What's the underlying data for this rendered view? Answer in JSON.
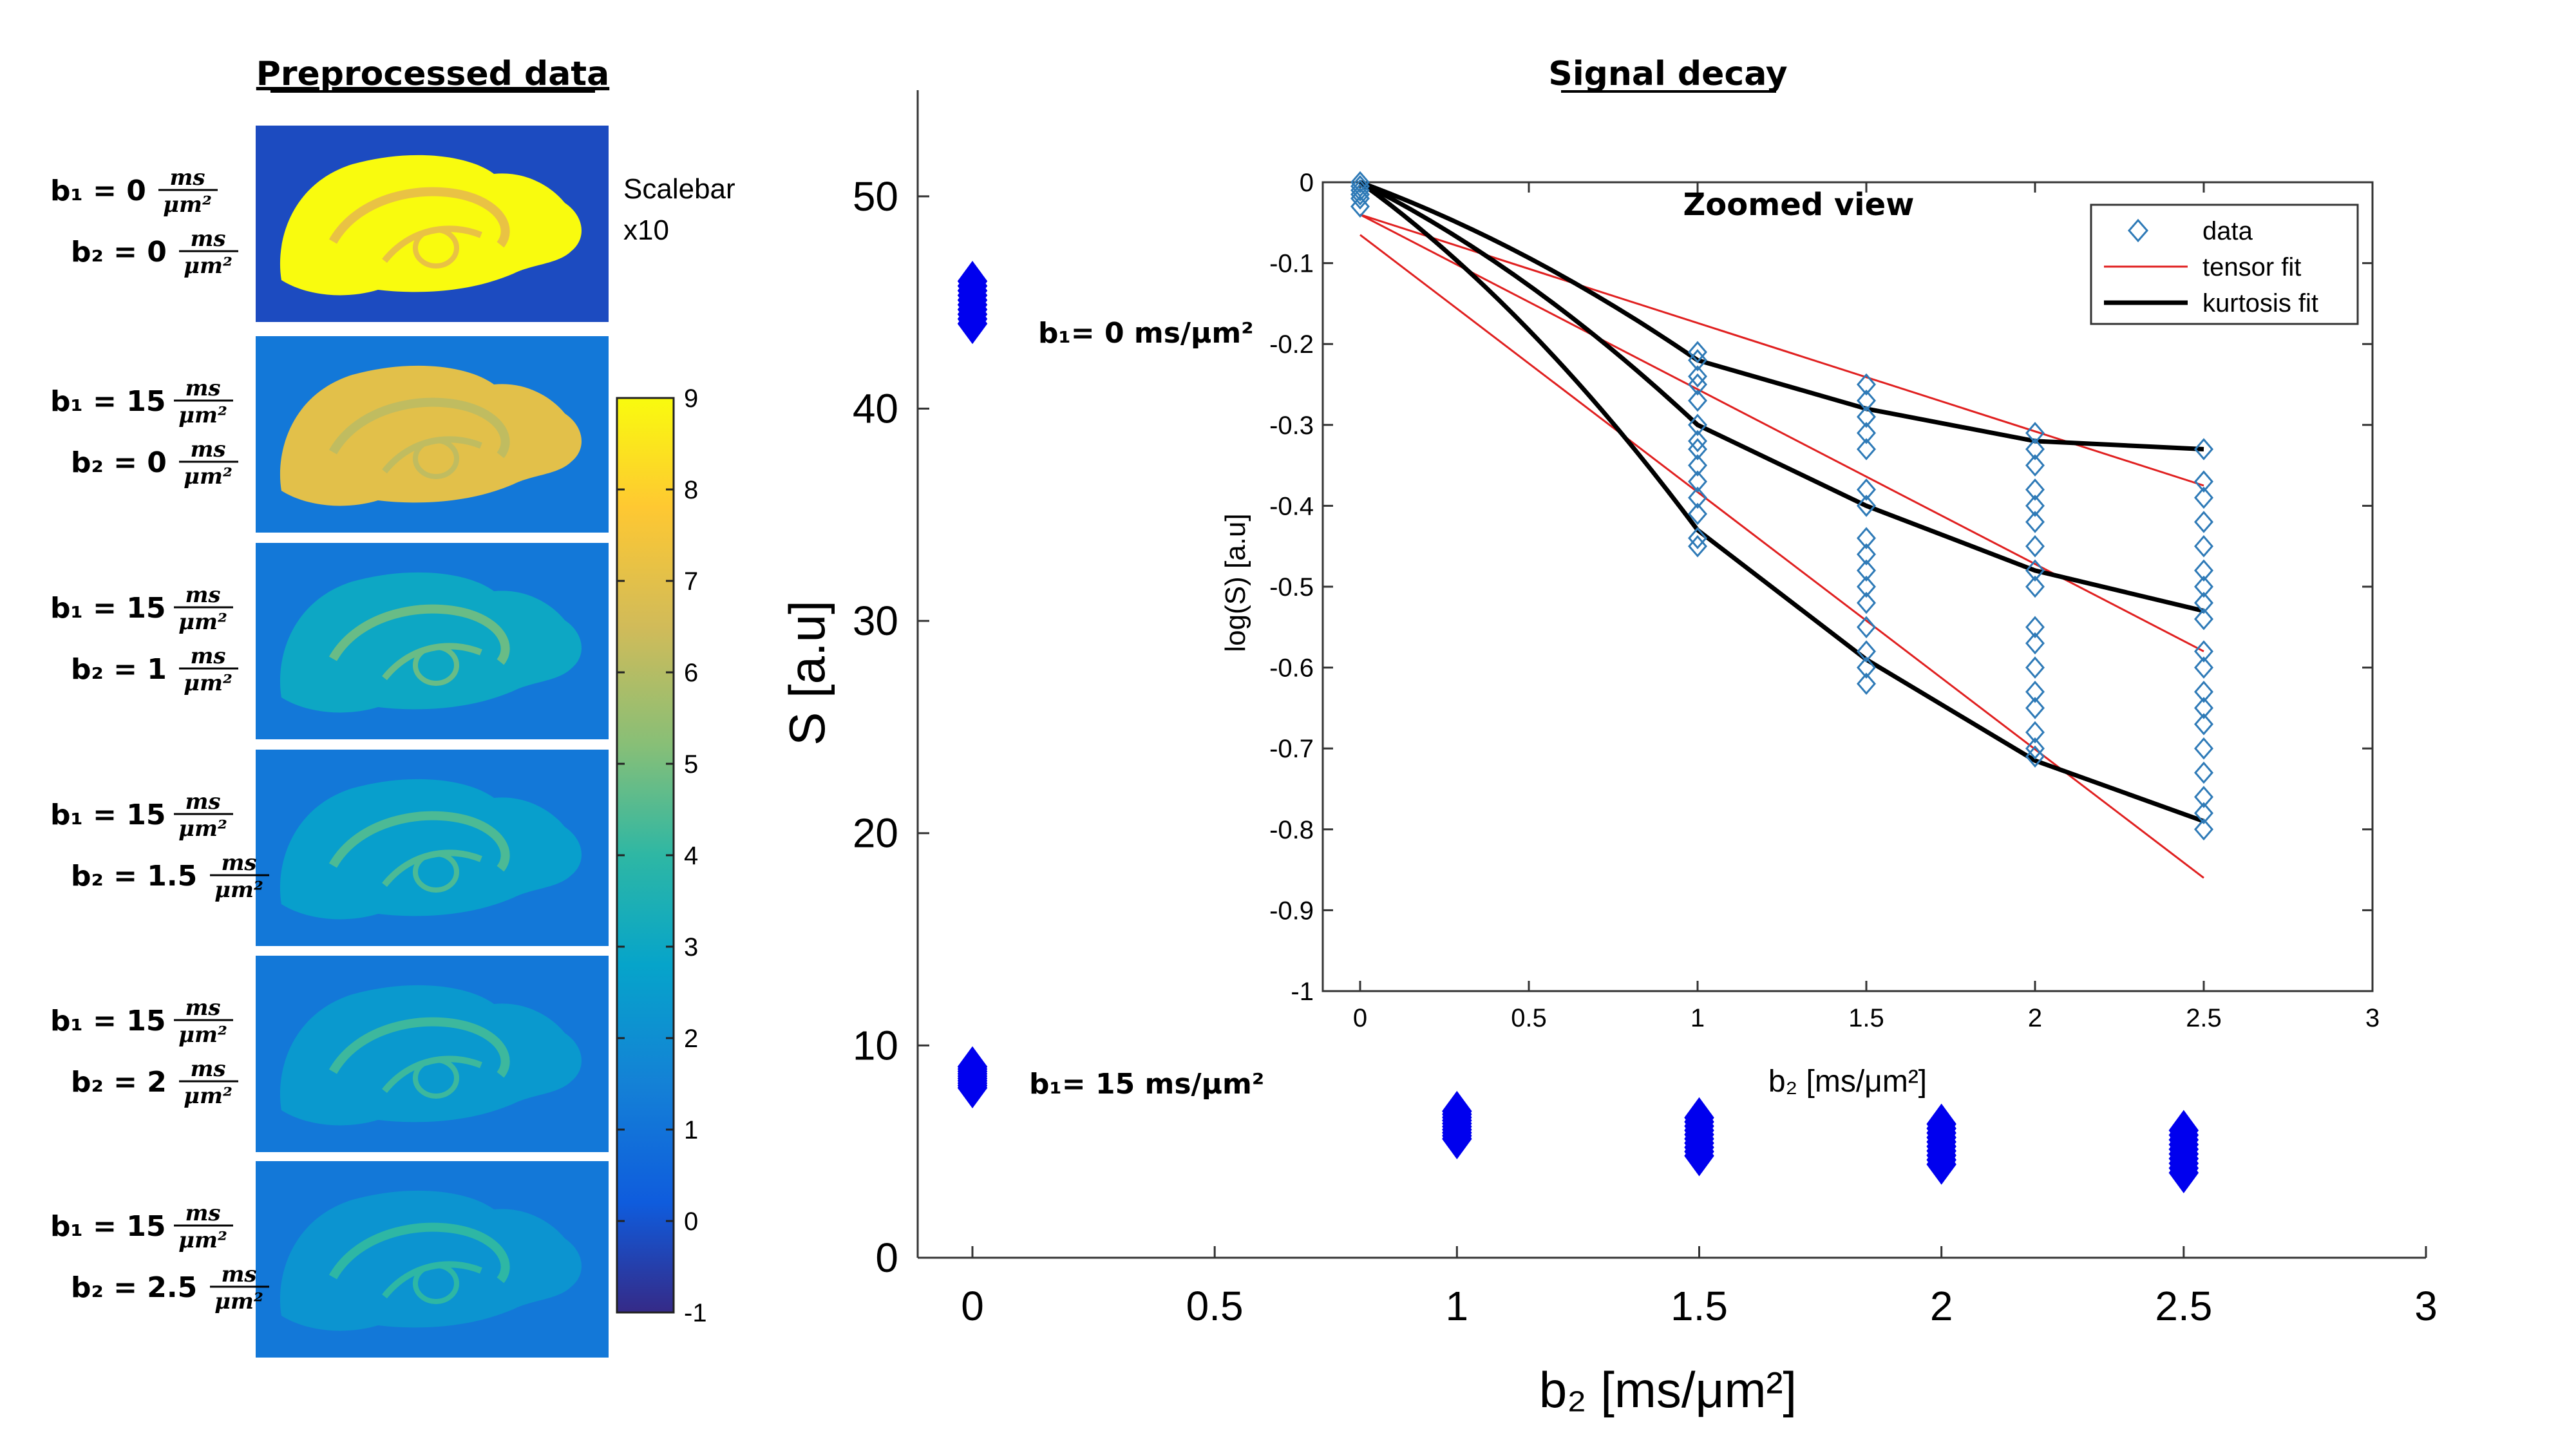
{
  "chart_data": [
    {
      "type": "image-panel",
      "title": "Preprocessed data",
      "scalebar_label_line1": "Scalebar",
      "scalebar_label_line2": "x10",
      "colormap": "parula",
      "colorbar_ticks": [
        "9",
        "8",
        "7",
        "6",
        "5",
        "4",
        "3",
        "2",
        "1",
        "0",
        "-1"
      ],
      "colorbar_range": [
        -1,
        9
      ],
      "unit": "ms",
      "unit_den": "μm²",
      "rows": [
        {
          "b1": "b₁ = 0",
          "b2": "b₂ = 0",
          "brightness": 9
        },
        {
          "b1": "b₁ = 15",
          "b2": "b₂ = 0",
          "brightness": 7
        },
        {
          "b1": "b₁ = 15",
          "b2": "b₂ = 1",
          "brightness": 3
        },
        {
          "b1": "b₁ = 15",
          "b2": "b₂ = 1.5",
          "brightness": 2.6
        },
        {
          "b1": "b₁ = 15",
          "b2": "b₂ = 2",
          "brightness": 2.4
        },
        {
          "b1": "b₁ = 15",
          "b2": "b₂ = 2.5",
          "brightness": 2.2
        }
      ]
    },
    {
      "type": "scatter",
      "title": "Signal decay",
      "xlabel": "b₂ [ms/μm²]",
      "ylabel": "S [a.u]",
      "xlim": [
        0,
        3
      ],
      "ylim": [
        0,
        55
      ],
      "xticks": [
        0,
        0.5,
        1,
        1.5,
        2,
        2.5,
        3
      ],
      "xtick_labels": [
        "0",
        "0.5",
        "1",
        "1.5",
        "2",
        "2.5",
        "3"
      ],
      "yticks": [
        0,
        10,
        20,
        30,
        40,
        50
      ],
      "ytick_labels": [
        "0",
        "10",
        "20",
        "30",
        "40",
        "50"
      ],
      "annotations": [
        {
          "text": "b₁= 0 ms/μm²",
          "x": 0,
          "y": 44.8
        },
        {
          "text": "b₁= 15 ms/μm²",
          "x": 0,
          "y": 8.5
        }
      ],
      "series": [
        {
          "name": "b1=0",
          "x": 0,
          "y_range": [
            44,
            46
          ]
        },
        {
          "name": "b1=15",
          "points": [
            {
              "x": 0,
              "y_range": [
                8,
                9
              ]
            },
            {
              "x": 1,
              "y_range": [
                5.6,
                6.9
              ]
            },
            {
              "x": 1.5,
              "y_range": [
                4.8,
                6.6
              ]
            },
            {
              "x": 2,
              "y_range": [
                4.4,
                6.3
              ]
            },
            {
              "x": 2.5,
              "y_range": [
                4.0,
                6.0
              ]
            }
          ]
        }
      ]
    },
    {
      "type": "scatter+line",
      "title": "Zoomed view",
      "xlabel": "b₂ [ms/μm²]",
      "ylabel": "log(S) [a.u]",
      "xlim": [
        0,
        3
      ],
      "ylim": [
        -1,
        0
      ],
      "xticks": [
        0,
        0.5,
        1,
        1.5,
        2,
        2.5,
        3
      ],
      "xtick_labels": [
        "0",
        "0.5",
        "1",
        "1.5",
        "2",
        "2.5",
        "3"
      ],
      "yticks": [
        0,
        -0.1,
        -0.2,
        -0.3,
        -0.4,
        -0.5,
        -0.6,
        -0.7,
        -0.8,
        -0.9,
        -1
      ],
      "ytick_labels": [
        "0",
        "-0.1",
        "-0.2",
        "-0.3",
        "-0.4",
        "-0.5",
        "-0.6",
        "-0.7",
        "-0.8",
        "-0.9",
        "-1"
      ],
      "legend": [
        "data",
        "tensor fit",
        "kurtosis fit"
      ],
      "legend_position": "top-right",
      "colors": {
        "data": "#2e7ab7",
        "tensor": "#e02020",
        "kurtosis": "#000000",
        "blue_marker": "#0000ee"
      },
      "data_points": [
        {
          "x": 0,
          "y": [
            0,
            -0.005,
            -0.01,
            -0.015,
            -0.02,
            -0.03
          ]
        },
        {
          "x": 1,
          "y": [
            -0.21,
            -0.22,
            -0.24,
            -0.25,
            -0.27,
            -0.3,
            -0.32,
            -0.33,
            -0.35,
            -0.37,
            -0.39,
            -0.41,
            -0.44,
            -0.45
          ]
        },
        {
          "x": 1.5,
          "y": [
            -0.25,
            -0.27,
            -0.29,
            -0.31,
            -0.33,
            -0.38,
            -0.4,
            -0.44,
            -0.46,
            -0.48,
            -0.5,
            -0.52,
            -0.55,
            -0.58,
            -0.6,
            -0.62
          ]
        },
        {
          "x": 2,
          "y": [
            -0.31,
            -0.33,
            -0.35,
            -0.38,
            -0.4,
            -0.42,
            -0.45,
            -0.48,
            -0.5,
            -0.55,
            -0.57,
            -0.6,
            -0.63,
            -0.65,
            -0.68,
            -0.7,
            -0.71
          ]
        },
        {
          "x": 2.5,
          "y": [
            -0.33,
            -0.37,
            -0.39,
            -0.42,
            -0.45,
            -0.48,
            -0.5,
            -0.52,
            -0.54,
            -0.58,
            -0.6,
            -0.63,
            -0.65,
            -0.67,
            -0.7,
            -0.73,
            -0.76,
            -0.78,
            -0.8
          ]
        }
      ],
      "tensor_fits": [
        {
          "y0": -0.04,
          "y_end": -0.375
        },
        {
          "y0": -0.04,
          "y_end": -0.58
        },
        {
          "y0": -0.065,
          "y_end": -0.86
        }
      ],
      "kurtosis_fits": [
        {
          "x": [
            0,
            1,
            1.5,
            2,
            2.5
          ],
          "y": [
            0,
            -0.22,
            -0.28,
            -0.32,
            -0.33
          ]
        },
        {
          "x": [
            0,
            1,
            1.5,
            2,
            2.5
          ],
          "y": [
            0,
            -0.3,
            -0.4,
            -0.48,
            -0.53
          ]
        },
        {
          "x": [
            0,
            1,
            1.5,
            2,
            2.5
          ],
          "y": [
            0,
            -0.43,
            -0.59,
            -0.715,
            -0.79
          ]
        }
      ]
    }
  ]
}
